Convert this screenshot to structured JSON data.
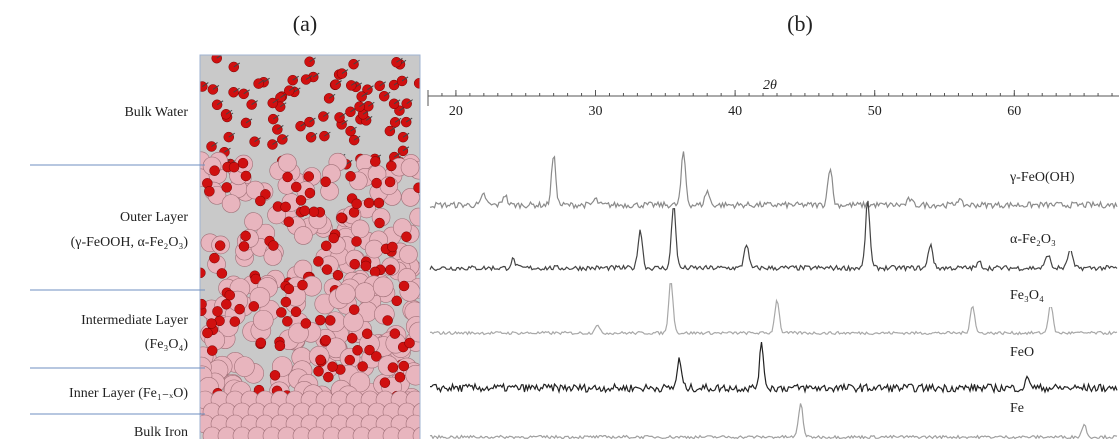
{
  "panels": {
    "a": "(a)",
    "b": "(b)"
  },
  "layers": {
    "bulk_water": "Bulk Water",
    "outer": "Outer Layer",
    "outer_sub": "(γ-FeOOH, α-Fe₂O₃)",
    "intermediate": "Intermediate Layer",
    "intermediate_sub": "(Fe₃O₄)",
    "inner": "Inner Layer (Fe₁₋ₓO)",
    "bulk_iron": "Bulk Iron"
  },
  "chart_data": {
    "type": "xrd",
    "xlabel": "2θ",
    "xlim": [
      18,
      67.5
    ],
    "xticks": [
      20,
      30,
      40,
      50,
      60
    ],
    "series": [
      {
        "name": "γ-FeO(OH)",
        "color": "#8a8a8a",
        "peaks": [
          [
            22,
            15
          ],
          [
            23.5,
            15
          ],
          [
            27,
            70
          ],
          [
            30,
            8
          ],
          [
            36.3,
            75
          ],
          [
            38,
            20
          ],
          [
            46.8,
            55
          ],
          [
            52.5,
            8
          ],
          [
            56,
            8
          ]
        ]
      },
      {
        "name": "α-Fe₂O₃",
        "color": "#444444",
        "peaks": [
          [
            24.1,
            12
          ],
          [
            33.2,
            55
          ],
          [
            35.6,
            90
          ],
          [
            40.8,
            35
          ],
          [
            49.5,
            95
          ],
          [
            54,
            35
          ],
          [
            57.5,
            8
          ],
          [
            62.4,
            20
          ],
          [
            64,
            28
          ]
        ]
      },
      {
        "name": "Fe₃O₄",
        "color": "#a8a8a8",
        "peaks": [
          [
            30.1,
            12
          ],
          [
            35.4,
            75
          ],
          [
            43,
            48
          ],
          [
            57,
            40
          ],
          [
            62.6,
            42
          ]
        ]
      },
      {
        "name": "FeO",
        "color": "#222222",
        "peaks": [
          [
            36,
            40
          ],
          [
            41.9,
            60
          ],
          [
            61,
            15
          ]
        ]
      },
      {
        "name": "Fe",
        "color": "#a0a0a0",
        "peaks": [
          [
            44.7,
            48
          ],
          [
            65,
            18
          ]
        ]
      }
    ]
  }
}
